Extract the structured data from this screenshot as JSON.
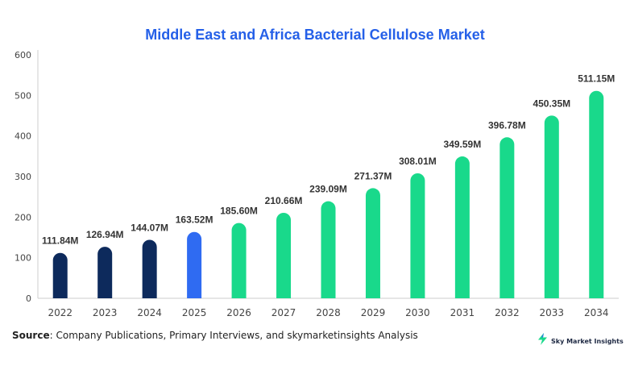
{
  "chart_data": {
    "type": "bar",
    "title": "Middle East and Africa Bacterial Cellulose Market",
    "categories": [
      "2022",
      "2023",
      "2024",
      "2025",
      "2026",
      "2027",
      "2028",
      "2029",
      "2030",
      "2031",
      "2032",
      "2033",
      "2034"
    ],
    "values": [
      111.84,
      126.94,
      144.07,
      163.52,
      185.6,
      210.66,
      239.09,
      271.37,
      308.01,
      349.59,
      396.78,
      450.35,
      511.15
    ],
    "data_labels": [
      "111.84M",
      "126.94M",
      "144.07M",
      "163.52M",
      "185.60M",
      "210.66M",
      "239.09M",
      "271.37M",
      "308.01M",
      "349.59M",
      "396.78M",
      "450.35M",
      "511.15M"
    ],
    "bar_colors": [
      "#0d2a5c",
      "#0d2a5c",
      "#0d2a5c",
      "#2f6bf2",
      "#19d98b",
      "#19d98b",
      "#19d98b",
      "#19d98b",
      "#19d98b",
      "#19d98b",
      "#19d98b",
      "#19d98b",
      "#19d98b"
    ],
    "xlabel": "",
    "ylabel": "",
    "ylim": [
      0,
      600
    ],
    "yticks": [
      0,
      100,
      200,
      300,
      400,
      500,
      600
    ],
    "grid": false
  },
  "colors": {
    "title": "#2560e8",
    "historical": "#0d2a5c",
    "base_year": "#2f6bf2",
    "forecast": "#19d98b",
    "axis": "#cccccc",
    "tick_text": "#444444"
  },
  "footer": {
    "source_label": "Source",
    "source_text": ": Company Publications, Primary Interviews, and skymarketinsights Analysis",
    "brand_name": "Sky Market Insights",
    "brand_icon": "lightning-bolt-icon"
  }
}
